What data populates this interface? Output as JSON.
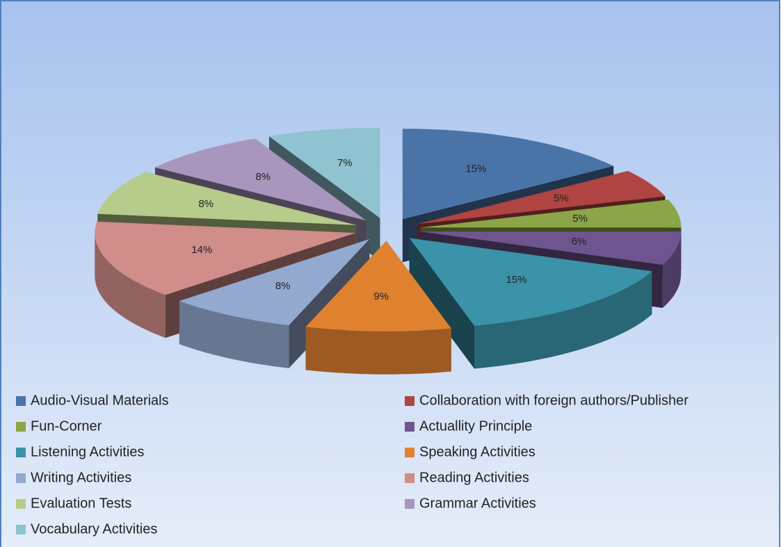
{
  "chart_data": {
    "type": "pie3d",
    "categories": [
      "Audio-Visual Materials",
      "Collaboration with foreign authors/Publisher",
      "Fun-Corner",
      "Actuallity Principle",
      "Listening Activities",
      "Speaking Activities",
      "Writing Activities",
      "Reading Activities",
      "Evaluation Tests",
      "Grammar Activities",
      "Vocabulary Activities"
    ],
    "values": [
      15,
      5,
      5,
      6,
      15,
      9,
      8,
      14,
      8,
      8,
      7
    ],
    "value_labels": [
      "15%",
      "5%",
      "5%",
      "6%",
      "15%",
      "9%",
      "8%",
      "14%",
      "8%",
      "8%",
      "7%"
    ],
    "colors": [
      "#4a74a8",
      "#b04442",
      "#8ba548",
      "#6e558f",
      "#3a93a8",
      "#e08130",
      "#93a9cf",
      "#d08d8a",
      "#b6cc8a",
      "#a896bd",
      "#8fc3cf"
    ],
    "legend": "bottom"
  }
}
